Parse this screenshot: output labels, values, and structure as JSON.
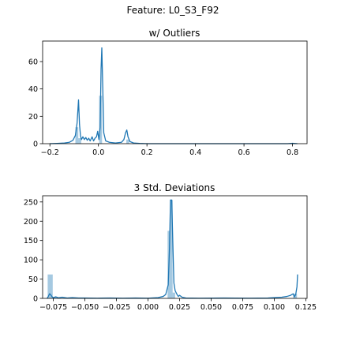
{
  "figure": {
    "title": "Feature: L0_S3_F92"
  },
  "colors": {
    "series": "#1f77b4",
    "axis": "#000000",
    "background": "#ffffff"
  },
  "chart_data": [
    {
      "type": "histogram",
      "title": "w/ Outliers",
      "xlim": [
        -0.23,
        0.86
      ],
      "ylim": [
        0,
        75
      ],
      "xticks": [
        -0.2,
        0.0,
        0.2,
        0.4,
        0.6,
        0.8
      ],
      "xtick_labels": [
        "−0.2",
        "0.0",
        "0.2",
        "0.4",
        "0.6",
        "0.8"
      ],
      "yticks": [
        0,
        20,
        40,
        60
      ],
      "ytick_labels": [
        "0",
        "20",
        "40",
        "60"
      ],
      "grid": false,
      "bars": [
        {
          "x0": -0.095,
          "x1": -0.083,
          "value": 12
        },
        {
          "x0": -0.083,
          "x1": -0.071,
          "value": 4
        },
        {
          "x0": 0.003,
          "x1": 0.015,
          "value": 35
        },
        {
          "x0": 0.115,
          "x1": 0.127,
          "value": 3
        },
        {
          "x0": 0.795,
          "x1": 0.807,
          "value": 0.5
        }
      ],
      "kde": [
        [
          -0.2,
          0
        ],
        [
          -0.17,
          0.2
        ],
        [
          -0.14,
          0.5
        ],
        [
          -0.12,
          1
        ],
        [
          -0.105,
          2.5
        ],
        [
          -0.095,
          6
        ],
        [
          -0.088,
          15
        ],
        [
          -0.082,
          32
        ],
        [
          -0.078,
          14
        ],
        [
          -0.074,
          6
        ],
        [
          -0.07,
          3
        ],
        [
          -0.064,
          5
        ],
        [
          -0.058,
          3
        ],
        [
          -0.052,
          4.5
        ],
        [
          -0.046,
          2.5
        ],
        [
          -0.04,
          4
        ],
        [
          -0.034,
          2
        ],
        [
          -0.026,
          5
        ],
        [
          -0.02,
          2
        ],
        [
          -0.014,
          4
        ],
        [
          -0.008,
          5
        ],
        [
          -0.003,
          9
        ],
        [
          0.002,
          3
        ],
        [
          0.007,
          12
        ],
        [
          0.011,
          55
        ],
        [
          0.014,
          70
        ],
        [
          0.018,
          40
        ],
        [
          0.022,
          8
        ],
        [
          0.03,
          2
        ],
        [
          0.045,
          1
        ],
        [
          0.07,
          0.5
        ],
        [
          0.095,
          1
        ],
        [
          0.105,
          3
        ],
        [
          0.112,
          8
        ],
        [
          0.117,
          10
        ],
        [
          0.122,
          5
        ],
        [
          0.13,
          1.5
        ],
        [
          0.145,
          0.5
        ],
        [
          0.17,
          0.2
        ],
        [
          0.2,
          0
        ],
        [
          0.3,
          0
        ],
        [
          0.5,
          0
        ],
        [
          0.7,
          0
        ],
        [
          0.78,
          0
        ],
        [
          0.8,
          0.3
        ],
        [
          0.82,
          0
        ]
      ]
    },
    {
      "type": "histogram",
      "title": "3 Std. Deviations",
      "xlim": [
        -0.0835,
        0.126
      ],
      "ylim": [
        0,
        266
      ],
      "xticks": [
        -0.075,
        -0.05,
        -0.025,
        0.0,
        0.025,
        0.05,
        0.075,
        0.1,
        0.125
      ],
      "xtick_labels": [
        "−0.075",
        "−0.050",
        "−0.025",
        "0.000",
        "0.025",
        "0.050",
        "0.075",
        "0.100",
        "0.125"
      ],
      "yticks": [
        0,
        50,
        100,
        150,
        200,
        250
      ],
      "ytick_labels": [
        "0",
        "50",
        "100",
        "150",
        "200",
        "250"
      ],
      "grid": false,
      "bars": [
        {
          "x0": -0.0795,
          "x1": -0.0755,
          "value": 62
        },
        {
          "x0": -0.0755,
          "x1": -0.0715,
          "value": 3
        },
        {
          "x0": 0.0155,
          "x1": 0.0175,
          "value": 175
        },
        {
          "x0": 0.0175,
          "x1": 0.0195,
          "value": 255
        },
        {
          "x0": 0.0195,
          "x1": 0.0215,
          "value": 15
        },
        {
          "x0": 0.115,
          "x1": 0.118,
          "value": 12
        }
      ],
      "kde": [
        [
          -0.08,
          0
        ],
        [
          -0.079,
          5
        ],
        [
          -0.078,
          12
        ],
        [
          -0.077,
          9
        ],
        [
          -0.076,
          4
        ],
        [
          -0.075,
          2
        ],
        [
          -0.073,
          4
        ],
        [
          -0.071,
          1.5
        ],
        [
          -0.068,
          3
        ],
        [
          -0.064,
          1
        ],
        [
          -0.06,
          2
        ],
        [
          -0.055,
          1
        ],
        [
          -0.05,
          1
        ],
        [
          -0.04,
          0.5
        ],
        [
          -0.03,
          1
        ],
        [
          -0.02,
          0.5
        ],
        [
          -0.01,
          1
        ],
        [
          0.0,
          0.5
        ],
        [
          0.008,
          2
        ],
        [
          0.012,
          5
        ],
        [
          0.014,
          10
        ],
        [
          0.016,
          35
        ],
        [
          0.017,
          130
        ],
        [
          0.0178,
          255
        ],
        [
          0.0188,
          255
        ],
        [
          0.0196,
          150
        ],
        [
          0.0205,
          40
        ],
        [
          0.0215,
          20
        ],
        [
          0.023,
          10
        ],
        [
          0.024,
          5
        ],
        [
          0.025,
          8
        ],
        [
          0.027,
          3
        ],
        [
          0.03,
          1
        ],
        [
          0.04,
          0.5
        ],
        [
          0.06,
          1
        ],
        [
          0.08,
          0.5
        ],
        [
          0.095,
          1
        ],
        [
          0.1,
          2
        ],
        [
          0.106,
          3
        ],
        [
          0.11,
          5
        ],
        [
          0.113,
          8
        ],
        [
          0.115,
          12
        ],
        [
          0.116,
          4
        ],
        [
          0.117,
          10
        ],
        [
          0.118,
          30
        ],
        [
          0.1185,
          62
        ]
      ]
    }
  ]
}
